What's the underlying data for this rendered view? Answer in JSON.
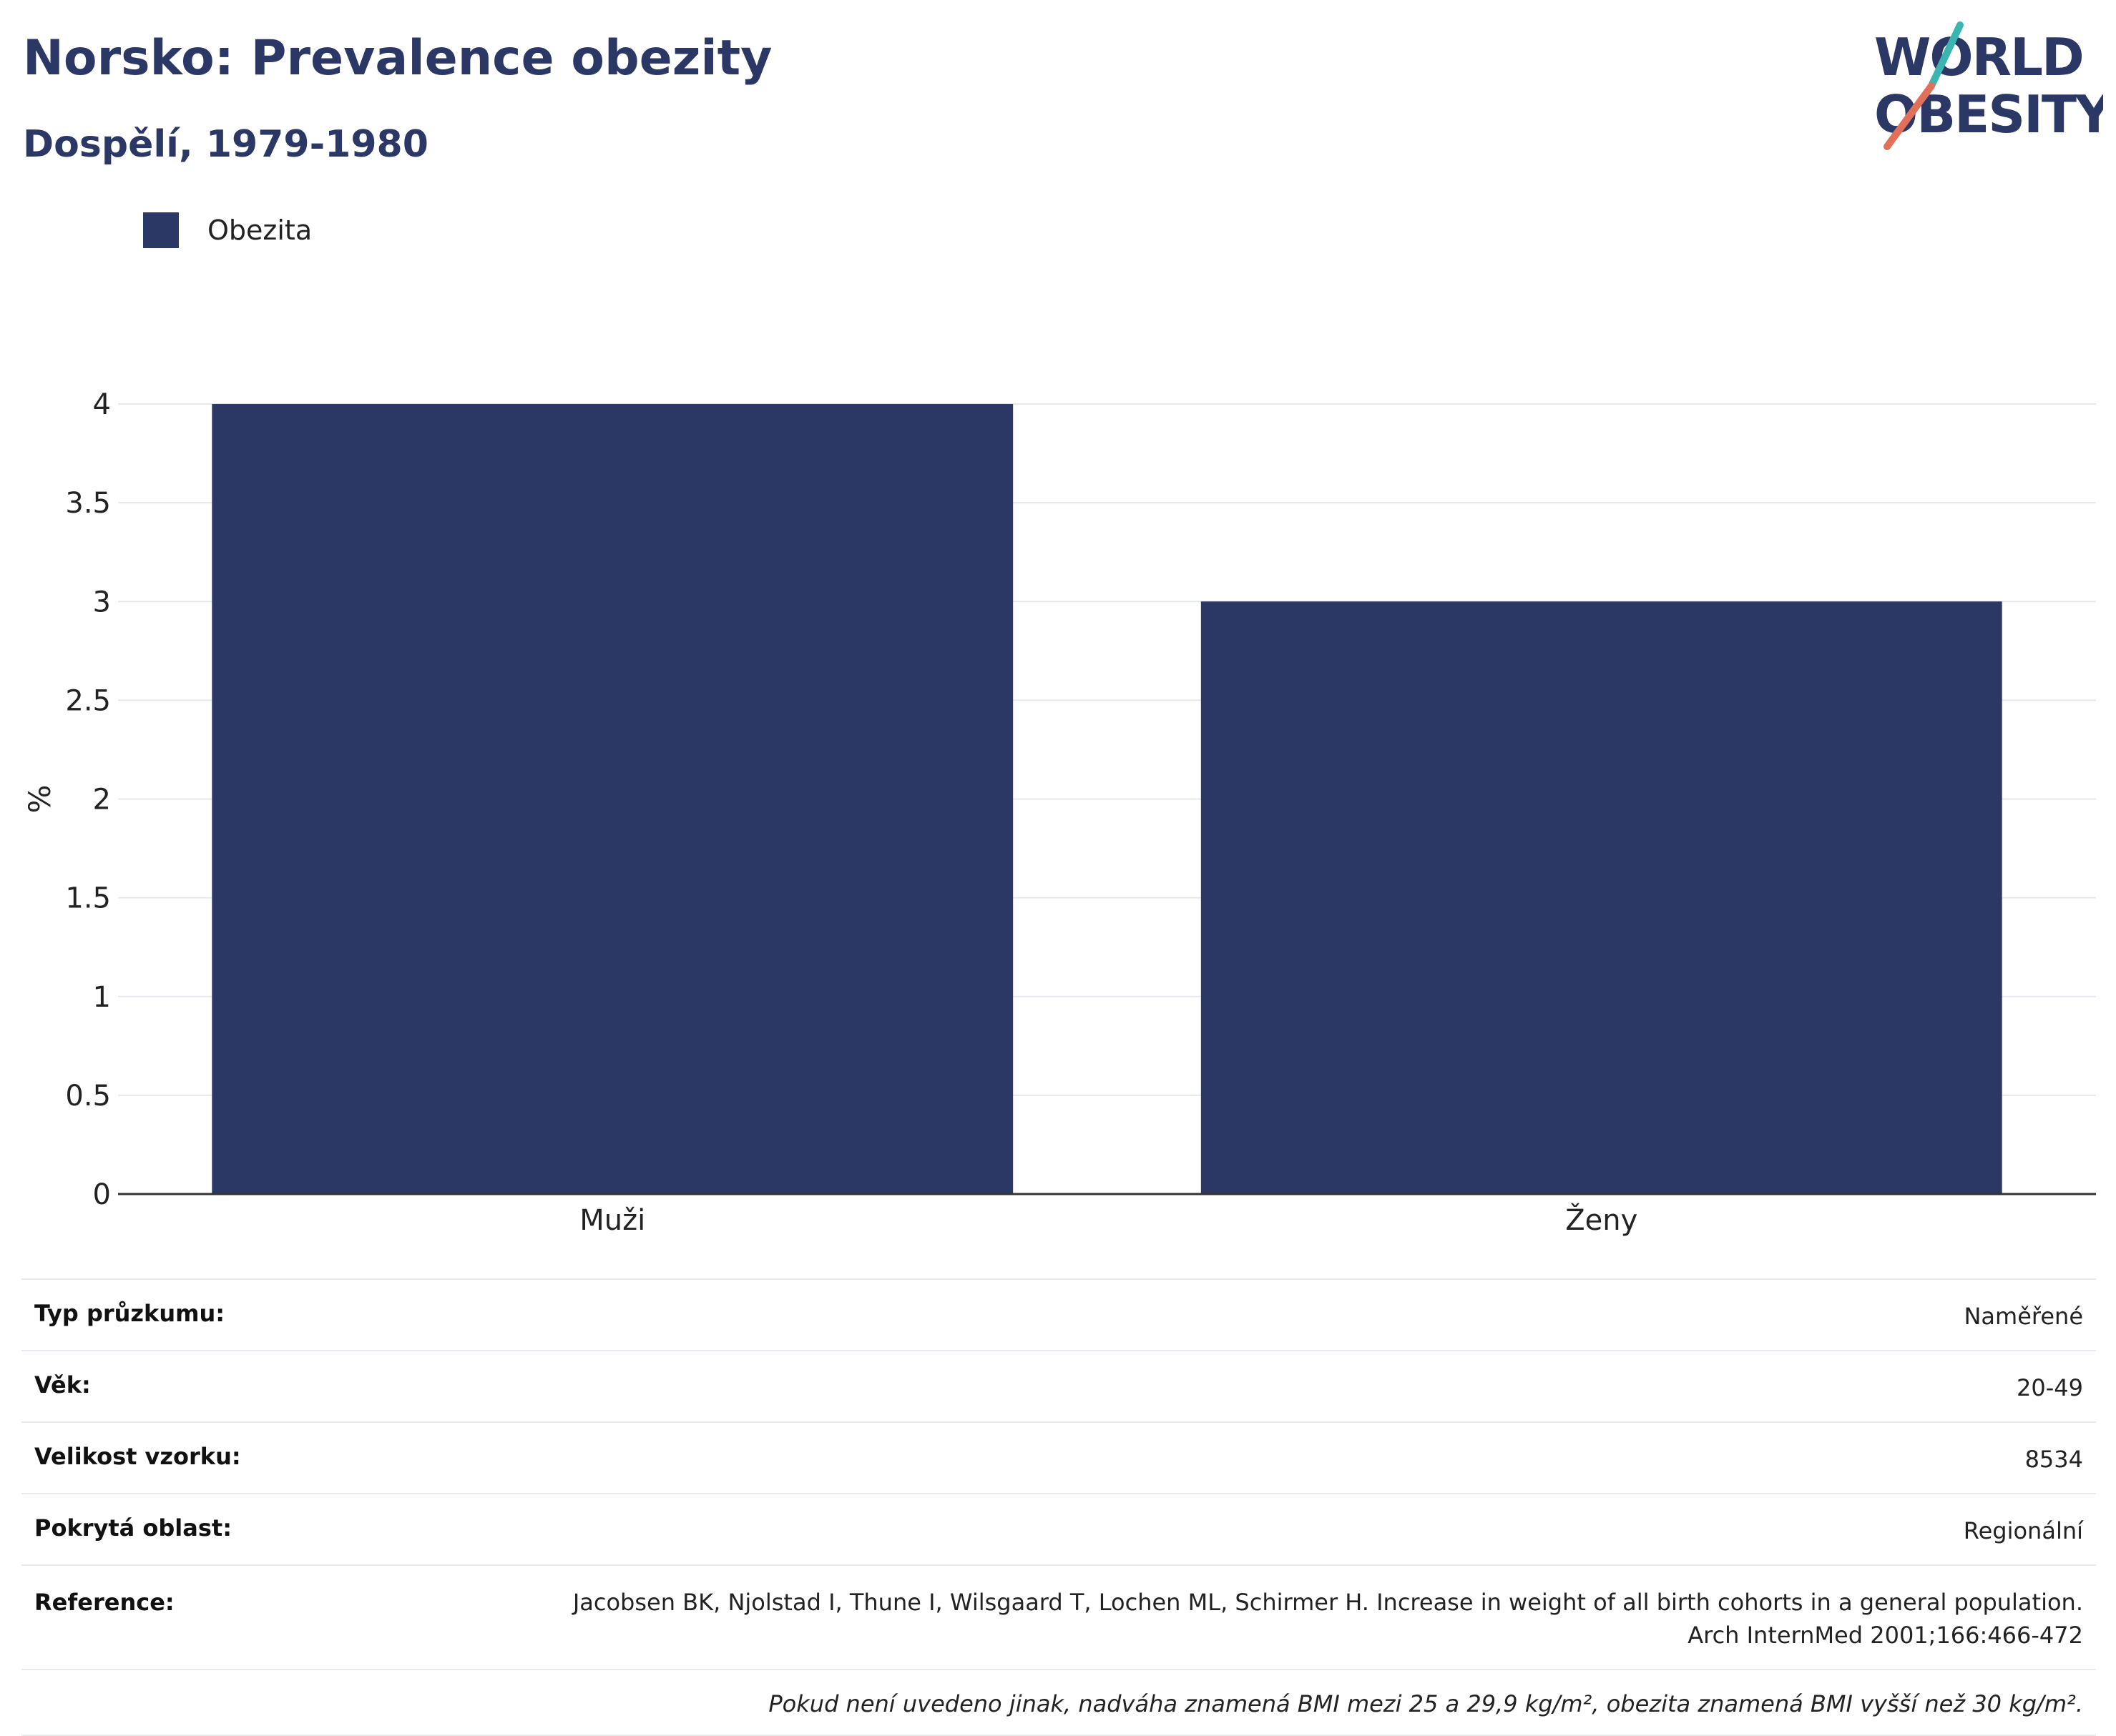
{
  "header": {
    "title": "Norsko: Prevalence obezity",
    "subtitle": "Dospělí, 1979-1980"
  },
  "logo": {
    "line1": "WORLD",
    "line2": "OBESITY"
  },
  "colors": {
    "bar": "#2b3765",
    "grid": "#e6e8ec",
    "axis": "#333333",
    "accent_teal": "#3ab5b0",
    "accent_red": "#e0705a"
  },
  "chart_data": {
    "type": "bar",
    "categories": [
      "Muži",
      "Ženy"
    ],
    "series": [
      {
        "name": "Obezita",
        "values": [
          4.0,
          3.0
        ]
      }
    ],
    "ylabel": "%",
    "xlabel": "",
    "ylim": [
      0,
      4
    ],
    "yticks": [
      "0",
      "0.5",
      "1",
      "1.5",
      "2",
      "2.5",
      "3",
      "3.5",
      "4"
    ],
    "grid": true,
    "legend": "top-left"
  },
  "info": {
    "rows": [
      {
        "key": "Typ průzkumu:",
        "value": "Naměřené"
      },
      {
        "key": "Věk:",
        "value": "20-49"
      },
      {
        "key": "Velikost vzorku:",
        "value": "8534"
      },
      {
        "key": "Pokrytá oblast:",
        "value": "Regionální"
      }
    ],
    "reference_key": "Reference:",
    "reference_line1": "Jacobsen BK, Njolstad I, Thune I, Wilsgaard T, Lochen ML, Schirmer H. Increase in weight of all birth cohorts in a general population.",
    "reference_line2": "Arch InternMed 2001;166:466-472",
    "note": "Pokud není uvedeno jinak, nadváha znamená BMI mezi 25 a 29,9 kg/m², obezita znamená BMI vyšší než 30 kg/m²."
  }
}
